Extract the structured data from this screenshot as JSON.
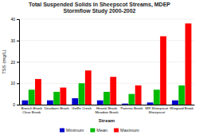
{
  "chart_data": {
    "type": "bar",
    "title": "Total Suspended Solids in Sheepscot Streams, MDEP",
    "subtitle": "Stormflow Study 2000-2002",
    "xlabel": "Stream",
    "ylabel": "TSS (mg/L)",
    "categories": [
      "Branch Brook\nClear Brook",
      "Dearborn Brook",
      "Goffle Creek",
      "Hewett Brook\nMeadow Brook",
      "Paterno Brook",
      "MR Sheepscot\nSheepscot",
      "Wingood Brook"
    ],
    "series": [
      {
        "name": "Minimum",
        "color": "#0000cc",
        "values": [
          2.0,
          2.0,
          3.0,
          2.0,
          0.5,
          1.0,
          2.0
        ]
      },
      {
        "name": "Mean",
        "color": "#00bb00",
        "values": [
          7.0,
          6.0,
          10.0,
          6.0,
          5.0,
          7.0,
          9.0
        ]
      },
      {
        "name": "Maximum",
        "color": "#ff0000",
        "values": [
          12.0,
          8.0,
          16.0,
          13.0,
          9.0,
          32.0,
          38.0
        ]
      }
    ],
    "ylim": [
      0,
      40
    ],
    "yticks": [
      0,
      10,
      20,
      30,
      40
    ],
    "grid": true,
    "legend": "bottom"
  }
}
